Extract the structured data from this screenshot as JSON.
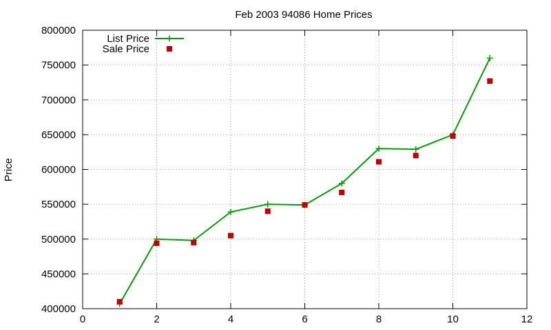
{
  "chart_data": {
    "type": "line",
    "title": "Feb 2003 94086 Home Prices",
    "xlabel": "",
    "ylabel": "Price",
    "xlim": [
      0,
      12
    ],
    "ylim": [
      400000,
      800000
    ],
    "xticks": [
      0,
      2,
      4,
      6,
      8,
      10,
      12
    ],
    "yticks": [
      400000,
      450000,
      500000,
      550000,
      600000,
      650000,
      700000,
      750000,
      800000
    ],
    "grid": true,
    "legend_position": "top-left",
    "series": [
      {
        "name": "List Price",
        "style": "line+cross",
        "color": "#00a000",
        "x": [
          1,
          2,
          3,
          4,
          5,
          6,
          7,
          8,
          9,
          10,
          11
        ],
        "y": [
          407000,
          500000,
          498000,
          539000,
          550000,
          549000,
          580000,
          630000,
          629000,
          650000,
          760000
        ]
      },
      {
        "name": "Sale Price",
        "style": "square",
        "color": "#c00000",
        "x": [
          1,
          2,
          3,
          4,
          5,
          6,
          7,
          8,
          9,
          10,
          11
        ],
        "y": [
          410000,
          494000,
          495000,
          505000,
          540000,
          549000,
          567000,
          611000,
          620000,
          648000,
          727000
        ]
      }
    ]
  }
}
